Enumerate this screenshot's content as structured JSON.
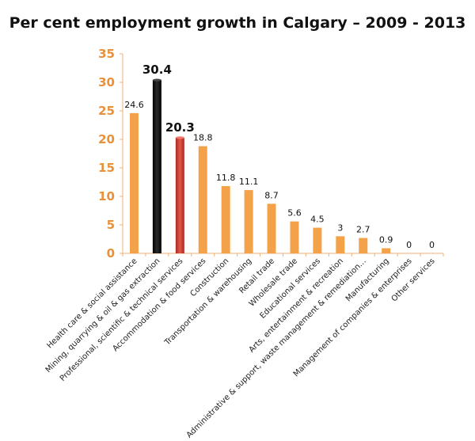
{
  "title": "Per cent employment growth in Calgary – 2009 - 2013",
  "colors": {
    "default": "#f4a24a",
    "axis": "#f0b070",
    "tick_text": "#e8913a"
  },
  "chart_data": {
    "type": "bar",
    "title": "Per cent employment growth in Calgary – 2009 - 2013",
    "xlabel": "",
    "ylabel": "",
    "ylim": [
      0,
      35
    ],
    "yticks": [
      0,
      5,
      10,
      15,
      20,
      25,
      30,
      35
    ],
    "grid": false,
    "categories": [
      "Health care & social assistance",
      "Mining, quarrying & oil & gas extraction",
      "Professional, scientific & technical services",
      "Accommodation & food services",
      "Construction",
      "Transportation & warehousing",
      "Retail trade",
      "Wholesale trade",
      "Educational services",
      "Arts, entertainment & recreation",
      "Administrative & support, waste management & remediation…",
      "Manufacturing",
      "Management of companies & enterprises",
      "Other services"
    ],
    "values": [
      24.6,
      30.4,
      20.3,
      18.8,
      11.8,
      11.1,
      8.7,
      5.6,
      4.5,
      3,
      2.7,
      0.9,
      0,
      0
    ],
    "labels": [
      "24.6",
      "30.4",
      "20.3",
      "18.8",
      "11.8",
      "11.1",
      "8.7",
      "5.6",
      "4.5",
      "3",
      "2.7",
      "0.9",
      "0",
      "0"
    ],
    "bar_colors": [
      "#f4a24a",
      "#111111",
      "#d8453a",
      "#f4a24a",
      "#f4a24a",
      "#f4a24a",
      "#f4a24a",
      "#f4a24a",
      "#f4a24a",
      "#f4a24a",
      "#f4a24a",
      "#f4a24a",
      "#f4a24a",
      "#f4a24a"
    ],
    "emphasized": [
      1,
      2
    ]
  }
}
